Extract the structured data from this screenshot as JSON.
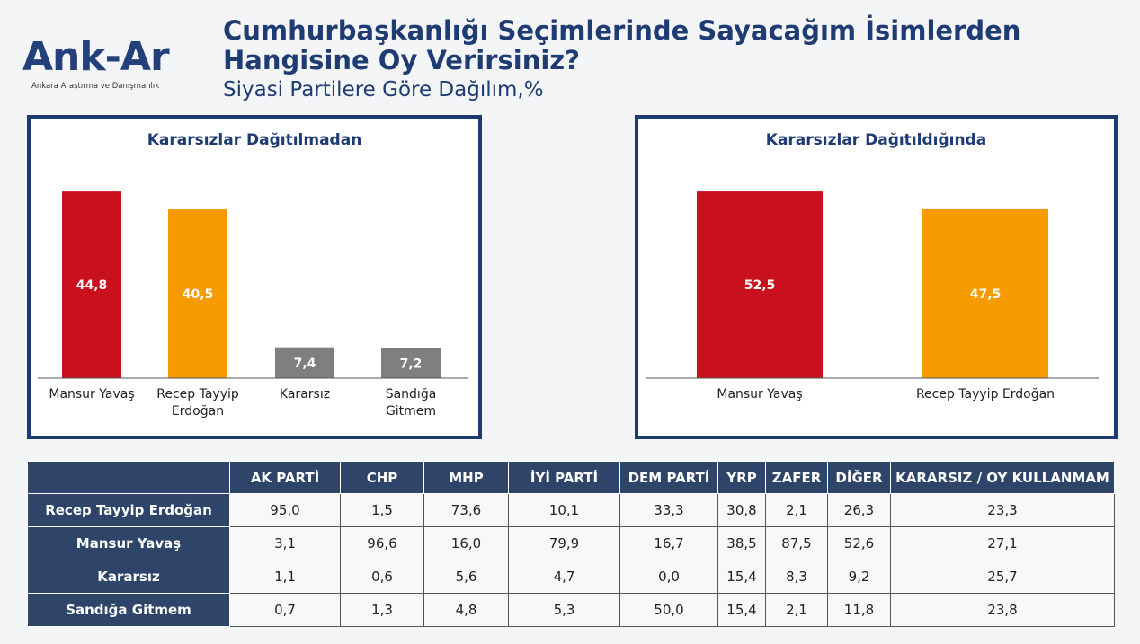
{
  "logo": {
    "name": "Ank-Ar",
    "tagline": "Ankara Araştırma ve Danışmanlık"
  },
  "header": {
    "title_line1": "Cumhurbaşkanlığı Seçimlerinde Sayacağım İsimlerden",
    "title_line2": "Hangisine Oy Verirsiniz?",
    "subtitle": "Siyasi Partilere Göre Dağılım,%"
  },
  "colors": {
    "red": "#c8101e",
    "orange": "#f59b00",
    "gray": "#7f7f7f",
    "navy": "#1f3a6e"
  },
  "chart_data": [
    {
      "type": "bar",
      "title": "Kararsızlar Dağıtılmadan",
      "categories": [
        "Mansur Yavaş",
        "Recep Tayyip Erdoğan",
        "Kararsız",
        "Sandığa Gitmem"
      ],
      "values": [
        44.8,
        40.5,
        7.4,
        7.2
      ],
      "value_labels": [
        "44,8",
        "40,5",
        "7,4",
        "7,2"
      ],
      "colors": [
        "#c8101e",
        "#f59b00",
        "#7f7f7f",
        "#7f7f7f"
      ]
    },
    {
      "type": "bar",
      "title": "Kararsızlar Dağıtıldığında",
      "categories": [
        "Mansur Yavaş",
        "Recep Tayyip Erdoğan"
      ],
      "values": [
        52.5,
        47.5
      ],
      "value_labels": [
        "52,5",
        "47,5"
      ],
      "colors": [
        "#c8101e",
        "#f59b00"
      ]
    }
  ],
  "table": {
    "columns": [
      "",
      "AK PARTİ",
      "CHP",
      "MHP",
      "İYİ PARTİ",
      "DEM PARTİ",
      "YRP",
      "ZAFER",
      "DİĞER",
      "KARARSIZ / OY KULLANMAM"
    ],
    "rows": [
      {
        "label": "Recep Tayyip Erdoğan",
        "cells": [
          "95,0",
          "1,5",
          "73,6",
          "10,1",
          "33,3",
          "30,8",
          "2,1",
          "26,3",
          "23,3"
        ]
      },
      {
        "label": "Mansur Yavaş",
        "cells": [
          "3,1",
          "96,6",
          "16,0",
          "79,9",
          "16,7",
          "38,5",
          "87,5",
          "52,6",
          "27,1"
        ]
      },
      {
        "label": "Kararsız",
        "cells": [
          "1,1",
          "0,6",
          "5,6",
          "4,7",
          "0,0",
          "15,4",
          "8,3",
          "9,2",
          "25,7"
        ]
      },
      {
        "label": "Sandığa Gitmem",
        "cells": [
          "0,7",
          "1,3",
          "4,8",
          "5,3",
          "50,0",
          "15,4",
          "2,1",
          "11,8",
          "23,8"
        ]
      }
    ]
  }
}
